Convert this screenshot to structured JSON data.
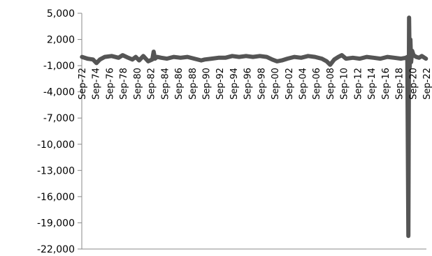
{
  "chart_data": {
    "type": "line",
    "title": "",
    "xlabel": "",
    "ylabel": "",
    "ylim": [
      -22000,
      5000
    ],
    "y_ticks": [
      "5,000",
      "2,000",
      "-1,000",
      "-4,000",
      "-7,000",
      "-10,000",
      "-13,000",
      "-16,000",
      "-19,000",
      "-22,000"
    ],
    "y_tick_values": [
      5000,
      2000,
      -1000,
      -4000,
      -7000,
      -10000,
      -13000,
      -16000,
      -19000,
      -22000
    ],
    "x_ticks": [
      "Sep-72",
      "Sep-74",
      "Sep-76",
      "Sep-78",
      "Sep-80",
      "Sep-82",
      "Sep-84",
      "Sep-86",
      "Sep-88",
      "Sep-90",
      "Sep-92",
      "Sep-94",
      "Sep-96",
      "Sep-98",
      "Sep-00",
      "Sep-02",
      "Sep-04",
      "Sep-06",
      "Sep-08",
      "Sep-10",
      "Sep-12",
      "Sep-14",
      "Sep-16",
      "Sep-18",
      "Sep-20",
      "Sep-22"
    ],
    "x_range": [
      1972.67,
      2022.67
    ],
    "grid": false,
    "legend": "none",
    "series": [
      {
        "color": "#555555",
        "x": [
          1972.7,
          1973.5,
          1974.3,
          1974.8,
          1975.3,
          1976.0,
          1977.0,
          1978.0,
          1978.6,
          1979.4,
          1980.0,
          1980.5,
          1981.0,
          1981.6,
          1982.3,
          1982.9,
          1983.1,
          1983.3,
          1983.6,
          1984.2,
          1985.0,
          1986.0,
          1987.0,
          1988.0,
          1989.0,
          1990.0,
          1990.5,
          1991.5,
          1992.5,
          1993.5,
          1994.5,
          1995.5,
          1996.5,
          1997.5,
          1998.5,
          1999.5,
          2000.3,
          2001.0,
          2001.7,
          2002.5,
          2003.5,
          2004.5,
          2005.5,
          2006.5,
          2007.5,
          2008.2,
          2008.7,
          2009.3,
          2009.9,
          2010.4,
          2011.0,
          2012.0,
          2013.0,
          2014.0,
          2015.0,
          2016.0,
          2017.0,
          2018.0,
          2019.0,
          2019.7,
          2019.9,
          2020.05,
          2020.15,
          2020.25,
          2020.35,
          2020.45,
          2020.6,
          2020.8,
          2021.2,
          2021.6,
          2022.0,
          2022.6
        ],
        "values": [
          0,
          -200,
          -300,
          -700,
          -300,
          0,
          100,
          -100,
          200,
          -100,
          -300,
          0,
          -400,
          100,
          -500,
          -300,
          600,
          -200,
          0,
          -100,
          -200,
          0,
          -100,
          0,
          -200,
          -400,
          -300,
          -200,
          -100,
          -100,
          100,
          0,
          100,
          0,
          100,
          0,
          -300,
          -500,
          -400,
          -200,
          0,
          -100,
          100,
          0,
          -200,
          -500,
          -900,
          -300,
          0,
          200,
          -200,
          -100,
          -200,
          0,
          -100,
          -200,
          0,
          -100,
          -200,
          -100,
          0,
          -20500,
          4500,
          -1200,
          2000,
          -600,
          700,
          200,
          0,
          -100,
          100,
          -200
        ]
      }
    ]
  }
}
